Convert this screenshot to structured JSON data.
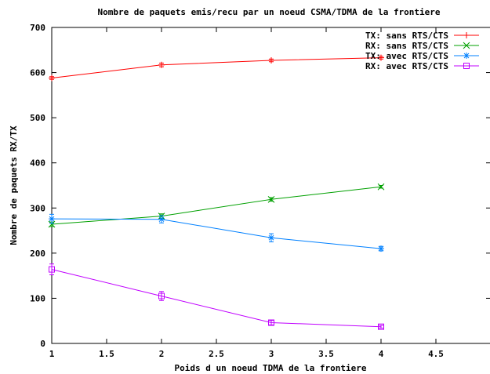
{
  "chart_data": {
    "type": "line",
    "title": "Nombre de paquets emis/recu par un noeud CSMA/TDMA de la frontiere",
    "xlabel": "Poids d un noeud TDMA de la frontiere",
    "ylabel": "Nombre de paquets RX/TX",
    "xlim": [
      1,
      5
    ],
    "ylim": [
      0,
      700
    ],
    "xticks": [
      1,
      1.5,
      2,
      2.5,
      3,
      3.5,
      4,
      4.5
    ],
    "xtick_labels": [
      "1",
      "1.5",
      "2",
      "2.5",
      "3",
      "3.5",
      "4",
      "4.5"
    ],
    "yticks": [
      0,
      100,
      200,
      300,
      400,
      500,
      600,
      700
    ],
    "ytick_labels": [
      "0",
      "100",
      "200",
      "300",
      "400",
      "500",
      "600",
      "700"
    ],
    "grid": false,
    "legend_position": "top-right",
    "x": [
      1,
      2,
      3,
      4
    ],
    "series": [
      {
        "name": "TX: sans RTS/CTS",
        "color": "#ff0000",
        "marker": "plus",
        "values": [
          588,
          617,
          627,
          633
        ],
        "errors": [
          3,
          4,
          3,
          3
        ]
      },
      {
        "name": "RX: sans RTS/CTS",
        "color": "#00a000",
        "marker": "x",
        "values": [
          264,
          282,
          319,
          347
        ],
        "errors": [
          5,
          5,
          4,
          3
        ]
      },
      {
        "name": "TX: avec RTS/CTS",
        "color": "#0080ff",
        "marker": "star",
        "values": [
          276,
          275,
          234,
          210
        ],
        "errors": [
          10,
          8,
          9,
          5
        ]
      },
      {
        "name": "RX: avec RTS/CTS",
        "color": "#c000ff",
        "marker": "square",
        "values": [
          164,
          105,
          46,
          37
        ],
        "errors": [
          12,
          10,
          5,
          3
        ]
      }
    ]
  }
}
